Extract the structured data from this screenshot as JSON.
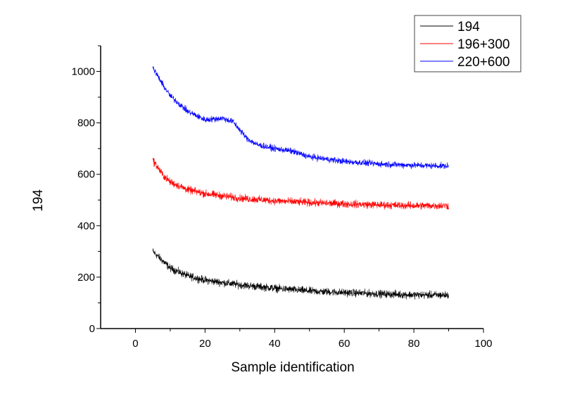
{
  "chart_data": {
    "type": "line",
    "title": "",
    "xlabel": "Sample identification",
    "ylabel": "194",
    "xlim": [
      -10,
      100
    ],
    "ylim": [
      0,
      1100
    ],
    "xticks": [
      0,
      20,
      40,
      60,
      80,
      100
    ],
    "yticks": [
      0,
      200,
      400,
      600,
      800,
      1000
    ],
    "grid": false,
    "legend_position": "top-right",
    "series": [
      {
        "name": "194",
        "color": "#000000",
        "noise": 22,
        "x": [
          5,
          10,
          15,
          20,
          30,
          40,
          50,
          60,
          70,
          80,
          90
        ],
        "y": [
          300,
          235,
          205,
          188,
          170,
          157,
          146,
          140,
          135,
          131,
          130
        ]
      },
      {
        "name": "196+300",
        "color": "#ff0000",
        "noise": 22,
        "x": [
          5,
          8,
          10,
          15,
          20,
          30,
          40,
          50,
          60,
          70,
          80,
          90
        ],
        "y": [
          655,
          595,
          570,
          540,
          525,
          507,
          497,
          490,
          485,
          481,
          478,
          478
        ]
      },
      {
        "name": "220+600",
        "color": "#0000ff",
        "noise": 18,
        "x": [
          5,
          8,
          10,
          15,
          20,
          25,
          28,
          32,
          35,
          40,
          45,
          50,
          60,
          70,
          80,
          90
        ],
        "y": [
          1015,
          945,
          905,
          845,
          812,
          818,
          805,
          740,
          715,
          700,
          690,
          668,
          650,
          640,
          635,
          632
        ]
      }
    ]
  }
}
